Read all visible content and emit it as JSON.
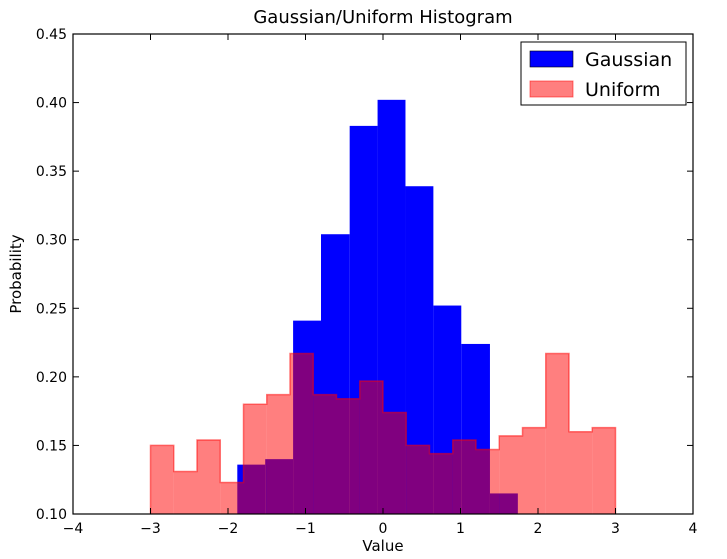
{
  "chart_data": {
    "type": "histogram",
    "title": "Gaussian/Uniform Histogram",
    "xlabel": "Value",
    "ylabel": "Probability",
    "xlim": [
      -4,
      4
    ],
    "ylim": [
      0.1,
      0.45
    ],
    "xticks": [
      "−4",
      "−3",
      "−2",
      "−1",
      "0",
      "1",
      "2",
      "3",
      "4"
    ],
    "xtick_values": [
      -4,
      -3,
      -2,
      -1,
      0,
      1,
      2,
      3,
      4
    ],
    "yticks": [
      "0.10",
      "0.15",
      "0.20",
      "0.25",
      "0.30",
      "0.35",
      "0.40",
      "0.45"
    ],
    "ytick_values": [
      0.1,
      0.15,
      0.2,
      0.25,
      0.3,
      0.35,
      0.4,
      0.45
    ],
    "legend": {
      "position": "top-right"
    },
    "series": [
      {
        "name": "Gaussian",
        "color": "#0000ff",
        "opacity": 1.0,
        "bin_edges": [
          -1.88,
          -1.52,
          -1.16,
          -0.8,
          -0.43,
          -0.07,
          0.29,
          0.65,
          1.01,
          1.38,
          1.74
        ],
        "values": [
          0.136,
          0.14,
          0.241,
          0.304,
          0.383,
          0.402,
          0.339,
          0.252,
          0.224,
          0.115
        ]
      },
      {
        "name": "Uniform",
        "color": "#ff0000",
        "opacity": 0.5,
        "bin_edges": [
          -3.0,
          -2.7,
          -2.4,
          -2.1,
          -1.8,
          -1.5,
          -1.2,
          -0.9,
          -0.6,
          -0.3,
          0.0,
          0.3,
          0.6,
          0.9,
          1.2,
          1.5,
          1.8,
          2.1,
          2.4,
          2.7,
          3.0
        ],
        "values": [
          0.15,
          0.131,
          0.154,
          0.123,
          0.18,
          0.187,
          0.217,
          0.187,
          0.184,
          0.197,
          0.174,
          0.15,
          0.144,
          0.154,
          0.147,
          0.157,
          0.163,
          0.217,
          0.16,
          0.163
        ]
      }
    ]
  }
}
